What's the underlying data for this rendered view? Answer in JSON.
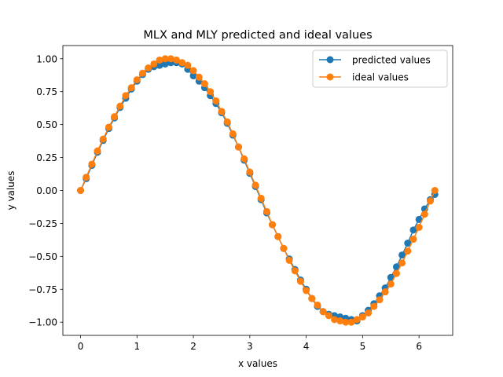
{
  "chart_data": {
    "type": "line",
    "title": "MLX and MLY predicted and ideal values",
    "xlabel": "x values",
    "ylabel": "y values",
    "xlim": [
      -0.314,
      6.597
    ],
    "ylim": [
      -1.1,
      1.1
    ],
    "xticks": [
      0,
      1,
      2,
      3,
      4,
      5,
      6
    ],
    "yticks": [
      -1.0,
      -0.75,
      -0.5,
      -0.25,
      0.0,
      0.25,
      0.5,
      0.75,
      1.0
    ],
    "ytick_labels": [
      "−1.00",
      "−0.75",
      "−0.50",
      "−0.25",
      "0.00",
      "0.25",
      "0.50",
      "0.75",
      "1.00"
    ],
    "grid": false,
    "legend_position": "top-right",
    "series": [
      {
        "name": "predicted values",
        "color": "#1f77b4",
        "x": [
          0.0,
          0.1,
          0.2,
          0.3,
          0.4,
          0.5,
          0.6,
          0.7,
          0.8,
          0.9,
          1.0,
          1.1,
          1.2,
          1.3,
          1.4,
          1.5,
          1.6,
          1.7,
          1.8,
          1.9,
          2.0,
          2.1,
          2.2,
          2.3,
          2.4,
          2.5,
          2.6,
          2.7,
          2.8,
          2.9,
          3.0,
          3.1,
          3.2,
          3.3,
          3.4,
          3.5,
          3.6,
          3.7,
          3.8,
          3.9,
          4.0,
          4.1,
          4.2,
          4.3,
          4.4,
          4.5,
          4.6,
          4.7,
          4.8,
          4.9,
          5.0,
          5.1,
          5.2,
          5.3,
          5.4,
          5.5,
          5.6,
          5.7,
          5.8,
          5.9,
          6.0,
          6.1,
          6.2,
          6.28
        ],
        "y": [
          0.0,
          0.09,
          0.19,
          0.29,
          0.38,
          0.47,
          0.55,
          0.63,
          0.7,
          0.77,
          0.83,
          0.88,
          0.92,
          0.94,
          0.95,
          0.96,
          0.97,
          0.97,
          0.96,
          0.92,
          0.87,
          0.83,
          0.78,
          0.72,
          0.66,
          0.59,
          0.51,
          0.42,
          0.33,
          0.23,
          0.13,
          0.03,
          -0.07,
          -0.17,
          -0.26,
          -0.35,
          -0.44,
          -0.52,
          -0.6,
          -0.68,
          -0.75,
          -0.82,
          -0.88,
          -0.92,
          -0.94,
          -0.95,
          -0.96,
          -0.97,
          -0.98,
          -0.99,
          -0.95,
          -0.91,
          -0.86,
          -0.8,
          -0.74,
          -0.66,
          -0.58,
          -0.49,
          -0.4,
          -0.3,
          -0.22,
          -0.14,
          -0.07,
          -0.03
        ]
      },
      {
        "name": "ideal values",
        "color": "#ff7f0e",
        "x": [
          0.0,
          0.1,
          0.2,
          0.3,
          0.4,
          0.5,
          0.6,
          0.7,
          0.8,
          0.9,
          1.0,
          1.1,
          1.2,
          1.3,
          1.4,
          1.5,
          1.6,
          1.7,
          1.8,
          1.9,
          2.0,
          2.1,
          2.2,
          2.3,
          2.4,
          2.5,
          2.6,
          2.7,
          2.8,
          2.9,
          3.0,
          3.1,
          3.2,
          3.3,
          3.4,
          3.5,
          3.6,
          3.7,
          3.8,
          3.9,
          4.0,
          4.1,
          4.2,
          4.3,
          4.4,
          4.5,
          4.6,
          4.7,
          4.8,
          4.9,
          5.0,
          5.1,
          5.2,
          5.3,
          5.4,
          5.5,
          5.6,
          5.7,
          5.8,
          5.9,
          6.0,
          6.1,
          6.2,
          6.28
        ],
        "y": [
          0.0,
          0.1,
          0.2,
          0.3,
          0.39,
          0.48,
          0.56,
          0.64,
          0.72,
          0.78,
          0.84,
          0.89,
          0.93,
          0.96,
          0.99,
          1.0,
          1.0,
          0.99,
          0.97,
          0.95,
          0.91,
          0.86,
          0.81,
          0.75,
          0.68,
          0.6,
          0.52,
          0.43,
          0.33,
          0.24,
          0.14,
          0.04,
          -0.06,
          -0.16,
          -0.26,
          -0.35,
          -0.44,
          -0.53,
          -0.61,
          -0.69,
          -0.76,
          -0.82,
          -0.87,
          -0.92,
          -0.95,
          -0.98,
          -0.99,
          -1.0,
          -1.0,
          -0.98,
          -0.96,
          -0.93,
          -0.88,
          -0.83,
          -0.77,
          -0.71,
          -0.63,
          -0.55,
          -0.46,
          -0.37,
          -0.28,
          -0.18,
          -0.08,
          0.0
        ]
      }
    ]
  }
}
